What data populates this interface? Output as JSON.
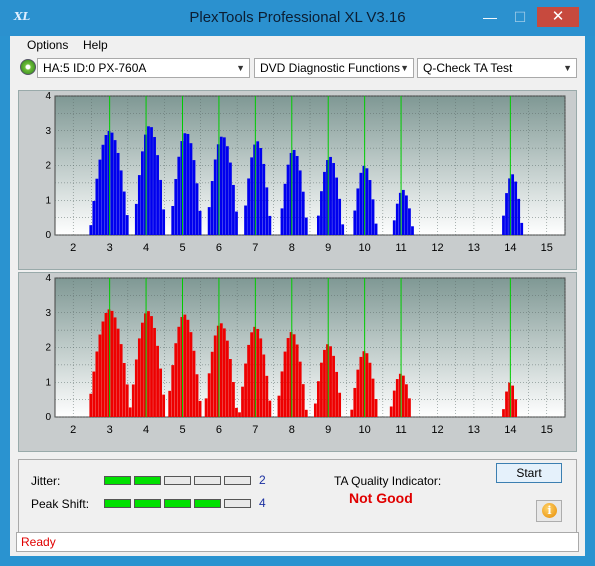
{
  "window": {
    "title": "PlexTools Professional XL V3.16",
    "icon_text": "XL"
  },
  "menu": [
    {
      "label": "Options"
    },
    {
      "label": "Help"
    }
  ],
  "toolbar": {
    "drive": "HA:5 ID:0  PX-760A",
    "functions": "DVD Diagnostic Functions",
    "test": "Q-Check TA Test"
  },
  "colors": {
    "top_series": "#0000ee",
    "bottom_series": "#ee0000",
    "grid_marker": "#00cc00",
    "accent": "#2b91cf",
    "status_text": "#e00000"
  },
  "chart_data": [
    {
      "type": "bar",
      "series": [
        {
          "color": "#0000ee"
        }
      ],
      "ylim": [
        0,
        4
      ],
      "yticks": [
        "0",
        "0.5",
        "1",
        "1.5",
        "2",
        "2.5",
        "3",
        "3.5",
        "4"
      ],
      "xlim": [
        1.5,
        15.5
      ],
      "xticks": [
        "2",
        "3",
        "4",
        "5",
        "6",
        "7",
        "8",
        "9",
        "10",
        "11",
        "12",
        "13",
        "14",
        "15"
      ],
      "markers_x": [
        3,
        4,
        5,
        6,
        7,
        8,
        9,
        10,
        11,
        14
      ],
      "peaks": [
        {
          "center": 3.0,
          "height": 3.0,
          "half_width": 0.55
        },
        {
          "center": 4.1,
          "height": 3.15,
          "half_width": 0.45
        },
        {
          "center": 5.1,
          "height": 2.95,
          "half_width": 0.45
        },
        {
          "center": 6.1,
          "height": 2.85,
          "half_width": 0.45
        },
        {
          "center": 7.05,
          "height": 2.7,
          "half_width": 0.4
        },
        {
          "center": 8.05,
          "height": 2.45,
          "half_width": 0.4
        },
        {
          "center": 9.05,
          "height": 2.25,
          "half_width": 0.38
        },
        {
          "center": 10.0,
          "height": 2.0,
          "half_width": 0.35
        },
        {
          "center": 11.05,
          "height": 1.3,
          "half_width": 0.3
        },
        {
          "center": 14.05,
          "height": 1.75,
          "half_width": 0.3
        }
      ]
    },
    {
      "type": "bar",
      "series": [
        {
          "color": "#ee0000"
        }
      ],
      "ylim": [
        0,
        4
      ],
      "yticks": [
        "0",
        "0.5",
        "1",
        "1.5",
        "2",
        "2.5",
        "3",
        "3.5",
        "4"
      ],
      "xlim": [
        1.5,
        15.5
      ],
      "xticks": [
        "2",
        "3",
        "4",
        "5",
        "6",
        "7",
        "8",
        "9",
        "10",
        "11",
        "12",
        "13",
        "14",
        "15"
      ],
      "markers_x": [
        3,
        4,
        5,
        6,
        7,
        8,
        9,
        10,
        11,
        14
      ],
      "peaks": [
        {
          "center": 3.0,
          "height": 3.1,
          "half_width": 0.6
        },
        {
          "center": 4.05,
          "height": 3.05,
          "half_width": 0.5
        },
        {
          "center": 5.05,
          "height": 2.95,
          "half_width": 0.48
        },
        {
          "center": 6.05,
          "height": 2.7,
          "half_width": 0.46
        },
        {
          "center": 7.0,
          "height": 2.6,
          "half_width": 0.45
        },
        {
          "center": 8.0,
          "height": 2.45,
          "half_width": 0.42
        },
        {
          "center": 9.0,
          "height": 2.1,
          "half_width": 0.4
        },
        {
          "center": 10.0,
          "height": 1.9,
          "half_width": 0.38
        },
        {
          "center": 11.0,
          "height": 1.25,
          "half_width": 0.32
        },
        {
          "center": 14.0,
          "height": 1.0,
          "half_width": 0.22
        }
      ]
    }
  ],
  "jitter": {
    "label": "Jitter:",
    "value": "2",
    "level": 2,
    "max": 5
  },
  "peak_shift": {
    "label": "Peak Shift:",
    "value": "4",
    "level": 4,
    "max": 5
  },
  "ta_quality": {
    "label": "TA Quality Indicator:",
    "value": "Not Good"
  },
  "buttons": {
    "start": "Start",
    "info_icon": "info-icon"
  },
  "status": "Ready"
}
